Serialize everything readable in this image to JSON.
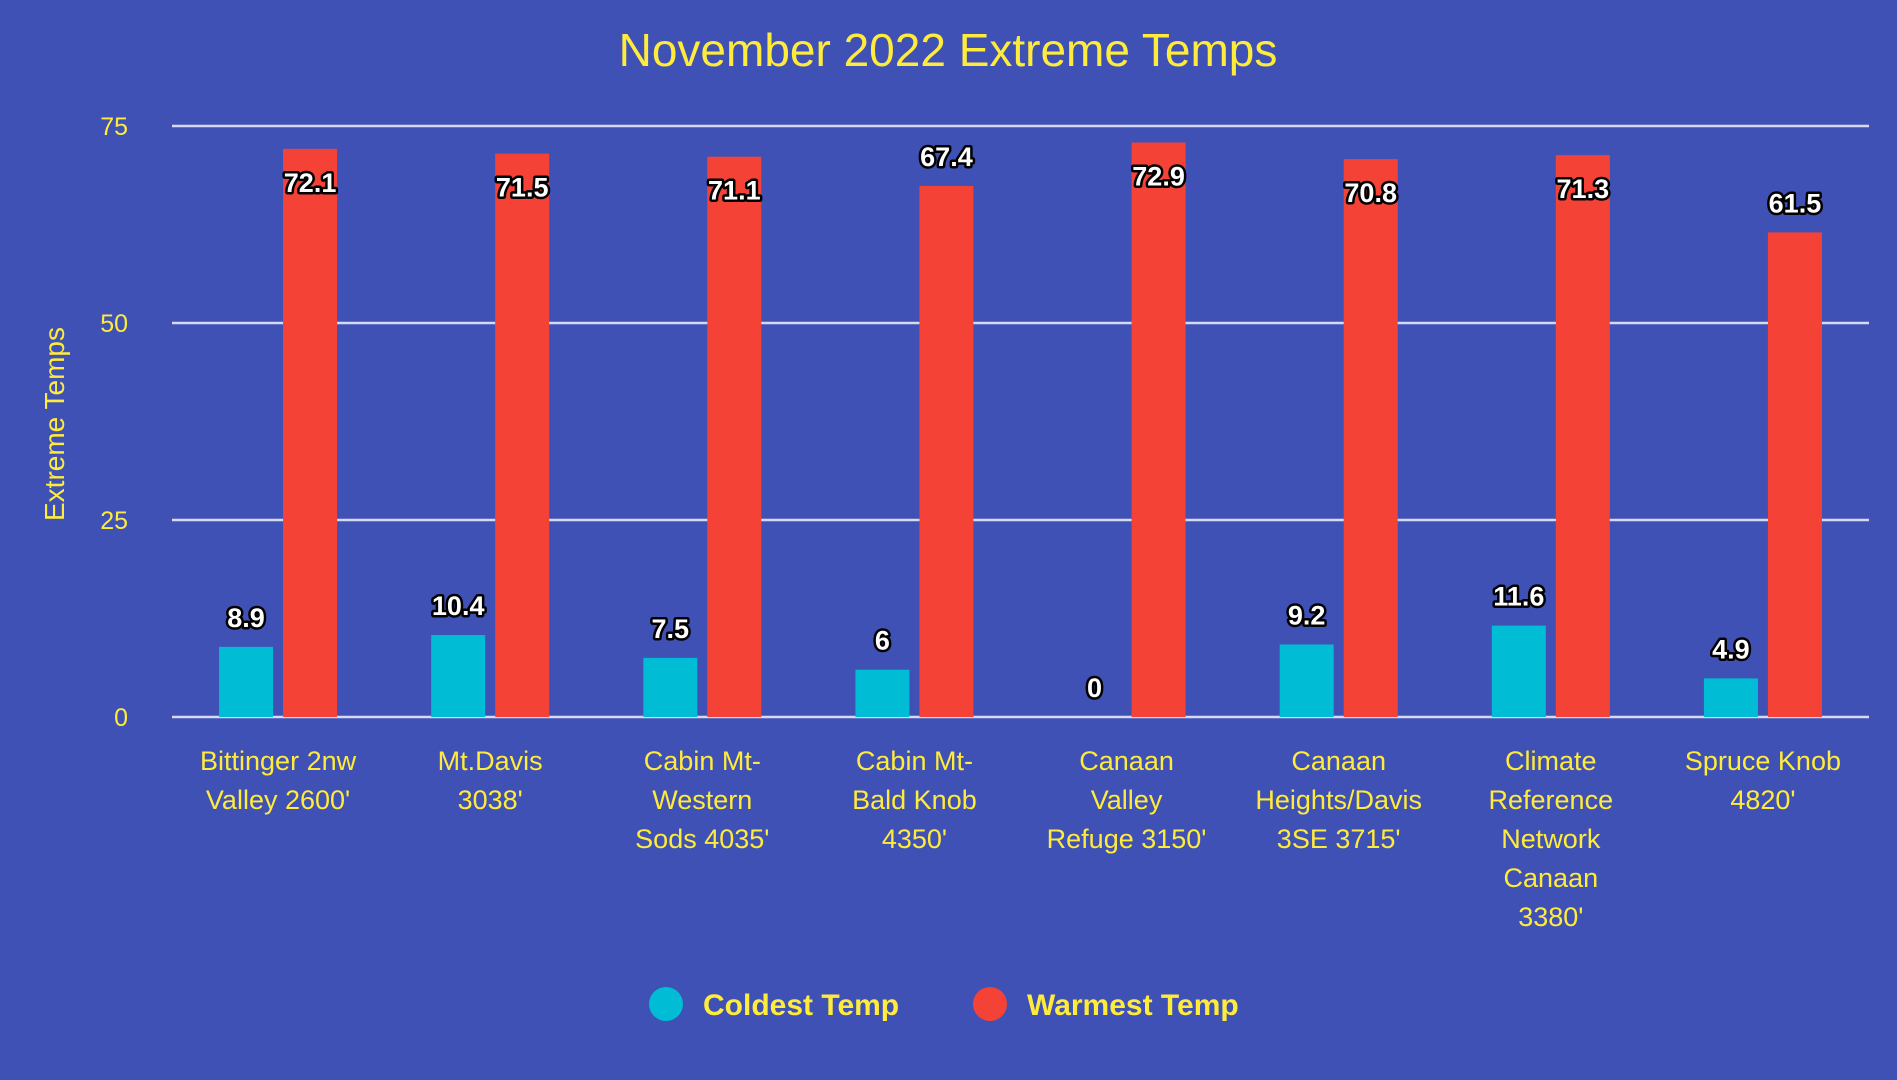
{
  "chart_data": {
    "type": "bar",
    "title": "November 2022 Extreme Temps",
    "xlabel": "",
    "ylabel": "Extreme Temps",
    "ylim": [
      0,
      75
    ],
    "yticks": [
      0,
      25,
      50,
      75
    ],
    "grid": true,
    "legend_position": "bottom",
    "categories": [
      [
        "Bittinger 2nw",
        "Valley 2600'"
      ],
      [
        "Mt.Davis",
        "3038'"
      ],
      [
        "Cabin Mt-",
        "Western",
        "Sods 4035'"
      ],
      [
        "Cabin Mt-",
        "Bald Knob",
        "4350'"
      ],
      [
        "Canaan",
        "Valley",
        "Refuge 3150'"
      ],
      [
        "Canaan",
        "Heights/Davis",
        "3SE 3715'"
      ],
      [
        "Climate",
        "Reference",
        "Network",
        "Canaan",
        "3380'"
      ],
      [
        "Spruce Knob",
        "4820'"
      ]
    ],
    "series": [
      {
        "name": "Coldest Temp",
        "color": "#00BCD4",
        "values": [
          8.9,
          10.4,
          7.5,
          6,
          0,
          9.2,
          11.6,
          4.9
        ]
      },
      {
        "name": "Warmest Temp",
        "color": "#F44336",
        "values": [
          72.1,
          71.5,
          71.1,
          67.4,
          72.9,
          70.8,
          71.3,
          61.5
        ]
      }
    ]
  },
  "colors": {
    "background": "#3F51B5",
    "text": "#FFEB3B",
    "grid": "#D6D9F0"
  }
}
